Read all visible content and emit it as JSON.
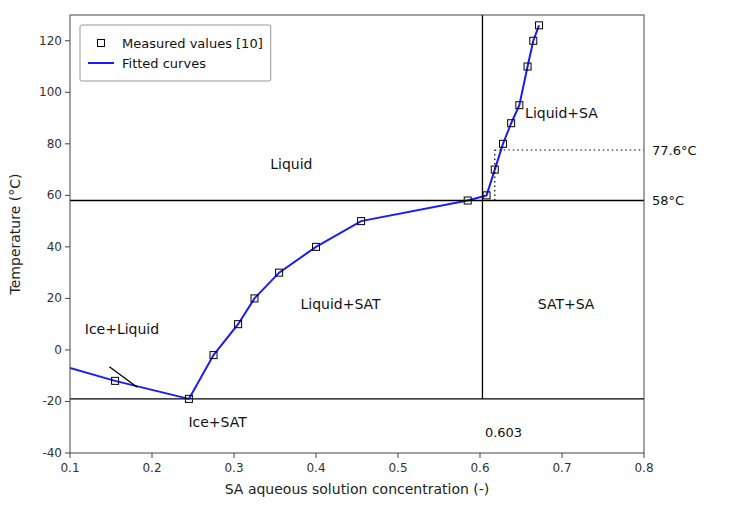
{
  "chart_data": {
    "type": "line",
    "xlabel": "SA aqueous solution concentration (-)",
    "ylabel": "Temperature (°C)",
    "xlim": [
      0.1,
      0.8
    ],
    "ylim": [
      -40,
      130
    ],
    "xticks": [
      0.1,
      0.2,
      0.3,
      0.4,
      0.5,
      0.6,
      0.7,
      0.8
    ],
    "yticks": [
      -40,
      -20,
      0,
      20,
      40,
      60,
      80,
      100,
      120
    ],
    "grid": false,
    "legend": "upper left",
    "series": [
      {
        "name": "Measured values [10]",
        "type": "scatter",
        "marker": "square",
        "color": "black",
        "x": [
          0.155,
          0.245,
          0.275,
          0.305,
          0.325,
          0.355,
          0.4,
          0.455,
          0.585,
          0.608,
          0.618,
          0.628,
          0.638,
          0.648,
          0.658,
          0.665,
          0.672
        ],
        "values": [
          -12,
          -19,
          -2,
          10,
          20,
          30,
          40,
          50,
          58,
          60,
          70,
          80,
          88,
          95,
          110,
          120,
          126
        ]
      },
      {
        "name": "Fitted curves",
        "type": "line",
        "line_style": "solid",
        "color": "#1a1aff",
        "x": [
          0.1,
          0.155,
          0.245,
          null,
          0.245,
          0.275,
          0.305,
          0.325,
          0.355,
          0.4,
          0.455,
          0.585,
          null,
          0.585,
          0.608,
          0.618,
          0.628,
          0.638,
          0.648,
          0.658,
          0.665,
          0.672
        ],
        "values": [
          -7,
          -12,
          -19,
          null,
          -19,
          -2,
          10,
          20,
          30,
          40,
          50,
          58,
          null,
          58,
          60,
          70,
          80,
          88,
          95,
          110,
          120,
          126
        ]
      },
      {
        "type": "line",
        "line_style": "solid",
        "color": "black",
        "x": [
          0.1,
          0.8
        ],
        "values": [
          -19,
          -19
        ]
      },
      {
        "type": "line",
        "line_style": "solid",
        "color": "black",
        "x": [
          0.1,
          0.8
        ],
        "values": [
          58,
          58
        ]
      },
      {
        "type": "line",
        "line_style": "solid",
        "color": "black",
        "x": [
          0.603,
          0.603
        ],
        "values": [
          -19,
          130
        ]
      },
      {
        "type": "line",
        "line_style": "dotted",
        "color": "black",
        "x": [
          0.618,
          0.8
        ],
        "values": [
          77.6,
          77.6
        ]
      },
      {
        "type": "line",
        "line_style": "dotted",
        "color": "black",
        "x": [
          0.618,
          0.618
        ],
        "values": [
          58,
          77.6
        ]
      },
      {
        "type": "line",
        "line_style": "solid",
        "color": "black",
        "x": [
          0.148,
          0.182
        ],
        "values": [
          -6.5,
          -14.5
        ]
      }
    ],
    "annotations": [
      {
        "text": "Liquid",
        "x": 0.37,
        "y": 72,
        "anchor": "middle"
      },
      {
        "text": "Liquid+SAT",
        "x": 0.43,
        "y": 18,
        "anchor": "middle"
      },
      {
        "text": "SAT+SA",
        "x": 0.705,
        "y": 18,
        "anchor": "middle"
      },
      {
        "text": "Ice+Liquid",
        "x": 0.118,
        "y": 8,
        "anchor": "start"
      },
      {
        "text": "Ice+SAT",
        "x": 0.28,
        "y": -28,
        "anchor": "middle"
      },
      {
        "text": "Liquid+SA",
        "x": 0.655,
        "y": 92,
        "anchor": "start"
      },
      {
        "text": "0.603",
        "x": 0.606,
        "y": -32,
        "anchor": "start"
      },
      {
        "text": "77.6°C",
        "y": 77.6,
        "anchor": "start"
      },
      {
        "text": "58°C",
        "y": 58,
        "anchor": "start"
      }
    ]
  }
}
